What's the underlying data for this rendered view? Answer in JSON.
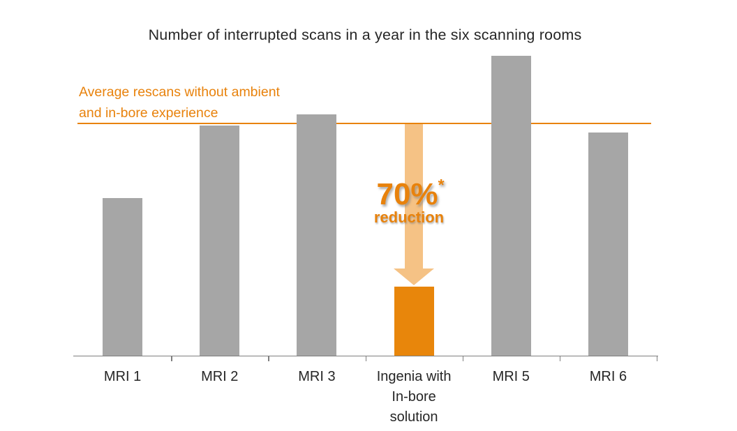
{
  "colors": {
    "bar_gray": "#a6a6a6",
    "bar_highlight": "#e8860b",
    "accent_orange": "#e8820c",
    "arrow_fill": "#f5c285",
    "axis_gray": "#7f7f7f",
    "text_dark": "#262626"
  },
  "reference_line": {
    "label_line1": "Average rescans without ambient",
    "label_line2": "and in-bore experience"
  },
  "annotation": {
    "value": "70%",
    "asterisk": "*",
    "label": "reduction"
  },
  "chart_data": {
    "type": "bar",
    "title": "Number of interrupted scans in a year in the six scanning rooms",
    "categories": [
      "MRI 1",
      "MRI 2",
      "MRI 3",
      "Ingenia with In-bore solution",
      "MRI 5",
      "MRI 6"
    ],
    "category_display_lines": [
      [
        "MRI 1"
      ],
      [
        "MRI 2"
      ],
      [
        "MRI 3"
      ],
      [
        "Ingenia with",
        "In-bore",
        "solution"
      ],
      [
        "MRI 5"
      ],
      [
        "MRI 6"
      ]
    ],
    "values": [
      68,
      99,
      104,
      30,
      129,
      96
    ],
    "value_scale": "relative units estimated from bar heights; reference average line = 100",
    "highlight_index": 3,
    "reference_line_value": 100,
    "reference_line_label": "Average rescans without ambient and in-bore experience",
    "annotation_text": "70%* reduction",
    "xlabel": "",
    "ylabel": "",
    "ylim": [
      0,
      135
    ],
    "y_axis_visible": false,
    "gridlines": false,
    "legend": "none"
  }
}
